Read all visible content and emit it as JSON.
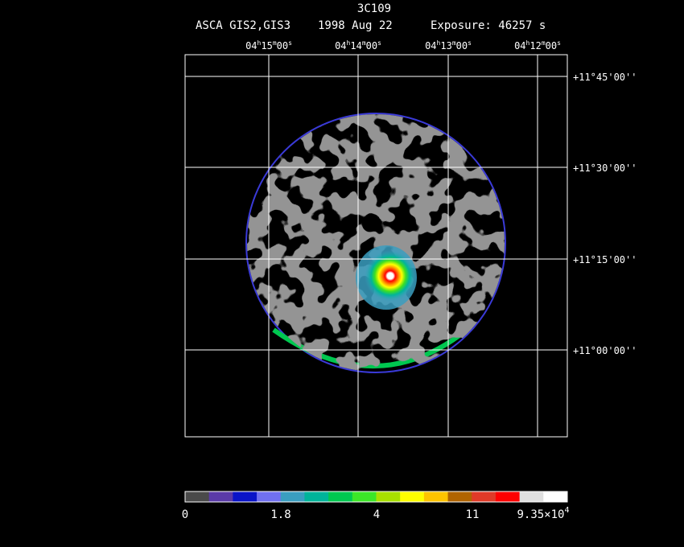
{
  "header": {
    "title": "3C109",
    "instrument": "ASCA GIS2,GIS3",
    "date": "1998 Aug 22",
    "exposure": "Exposure: 46257 s"
  },
  "ra_labels": [
    [
      "04",
      "h",
      "15",
      "m",
      "00",
      "s"
    ],
    [
      "04",
      "h",
      "14",
      "m",
      "00",
      "s"
    ],
    [
      "04",
      "h",
      "13",
      "m",
      "00",
      "s"
    ],
    [
      "04",
      "h",
      "12",
      "m",
      "00",
      "s"
    ]
  ],
  "dec_labels": [
    "+11°45'00''",
    "+11°30'00''",
    "+11°15'00''",
    "+11°00'00''"
  ],
  "colorbar": {
    "colors": [
      "#4a4a4a",
      "#5a3aa8",
      "#0a14c8",
      "#7070f0",
      "#3a9ec0",
      "#00b49a",
      "#00c850",
      "#3ce628",
      "#a8e000",
      "#ffff00",
      "#ffc400",
      "#b06400",
      "#e03a28",
      "#ff0000",
      "#e0e0e0",
      "#ffffff"
    ],
    "labels": [
      [
        "0"
      ],
      [
        "1.8"
      ],
      [
        "4"
      ],
      [
        "11"
      ],
      [
        "9.35×10",
        "4"
      ]
    ]
  }
}
